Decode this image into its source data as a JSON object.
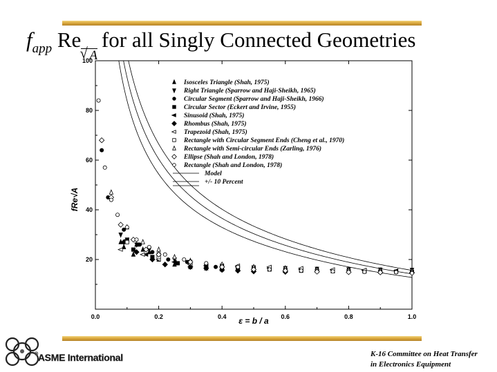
{
  "slide": {
    "title_f": "f",
    "title_app": "app",
    "title_re": " Re",
    "title_A": "A",
    "title_rest": "for all Singly Connected Geometries",
    "footer_line1": "K-16 Committee on Heat Transfer",
    "footer_line2": "in Electronics Equipment",
    "logo_text": "ASME International",
    "logo_mark": "®",
    "colors": {
      "bar": "#d9a63a",
      "ink": "#000000"
    }
  },
  "chart_data": {
    "type": "scatter",
    "xlabel": "ε = b / a",
    "ylabel": "fRe√A",
    "xlim": [
      0,
      1
    ],
    "ylim": [
      0,
      100
    ],
    "xticks": [
      0.0,
      0.2,
      0.4,
      0.6,
      0.8,
      1.0
    ],
    "yticks": [
      20,
      40,
      60,
      80,
      100
    ],
    "xtick_labels": [
      "0.0",
      "0.2",
      "0.4",
      "0.6",
      "0.8",
      "1.0"
    ],
    "ytick_labels": [
      "20",
      "40",
      "60",
      "80",
      "100"
    ],
    "grid": false,
    "legend_position": "top-center",
    "series": [
      {
        "name": "Isosceles Triangle (Shah, 1975)",
        "marker": "triangle-up",
        "fill": true,
        "x": [
          0.08,
          0.09,
          0.12,
          0.13,
          0.15,
          0.17,
          0.2,
          0.25,
          0.3,
          0.35,
          0.4,
          0.5,
          0.6,
          0.7,
          0.8,
          0.9,
          1.0
        ],
        "y": [
          27,
          25,
          22,
          26,
          24,
          23,
          20,
          18,
          17,
          16.5,
          16,
          15.8,
          15.6,
          15.5,
          15.5,
          15.5,
          15.5
        ]
      },
      {
        "name": "Right Triangle (Sparrow and Haji-Sheikh, 1965)",
        "marker": "triangle-down",
        "fill": true,
        "x": [
          0.08,
          0.1,
          0.13,
          0.17,
          0.2,
          0.25,
          0.3,
          0.4,
          0.5,
          0.6,
          0.7,
          0.8,
          0.9,
          1.0
        ],
        "y": [
          30,
          28,
          26,
          24,
          22,
          20,
          19,
          17.5,
          16.8,
          16.5,
          16.2,
          16,
          15.9,
          15.8
        ]
      },
      {
        "name": "Circular Segment (Sparrow and Haji-Sheikh, 1966)",
        "marker": "circle",
        "fill": true,
        "x": [
          0.02,
          0.04,
          0.09,
          0.14,
          0.18,
          0.23,
          0.29,
          0.38,
          0.5,
          0.6,
          0.7,
          0.8,
          0.9,
          1.0
        ],
        "y": [
          64,
          45,
          32,
          26,
          23,
          20,
          19,
          17,
          16,
          15.5,
          15.2,
          15,
          14.9,
          14.8
        ]
      },
      {
        "name": "Circular Sector (Eckert and Irvine, 1955)",
        "marker": "square",
        "fill": true,
        "x": [
          0.12,
          0.18,
          0.26,
          0.35,
          0.45,
          0.55,
          0.65,
          0.75,
          0.85,
          0.95,
          1.0
        ],
        "y": [
          24,
          21,
          18.5,
          17.5,
          16.5,
          16,
          15.5,
          15.3,
          15.2,
          15.1,
          15
        ]
      },
      {
        "name": "Sinusoid (Shah, 1975)",
        "marker": "triangle-left",
        "fill": true,
        "x": [
          0.1,
          0.16,
          0.25,
          0.35,
          0.45,
          0.55,
          0.65,
          0.75,
          0.85,
          0.95
        ],
        "y": [
          28,
          22,
          19,
          17.5,
          17,
          16.5,
          16,
          15.8,
          15.6,
          15.5
        ]
      },
      {
        "name": "Rhombus (Shah, 1975)",
        "marker": "diamond",
        "fill": true,
        "x": [
          0.09,
          0.13,
          0.18,
          0.22,
          0.3,
          0.35,
          0.4,
          0.45,
          0.5,
          0.6
        ],
        "y": [
          27,
          23,
          20,
          18,
          17,
          16.5,
          15.8,
          15.5,
          15.2,
          15
        ]
      },
      {
        "name": "Trapezoid (Shah, 1975)",
        "marker": "triangle-left",
        "fill": false,
        "x": [
          0.08,
          0.15,
          0.2,
          0.3,
          0.45,
          0.55,
          0.65,
          0.75,
          0.85
        ],
        "y": [
          24,
          22,
          20,
          18,
          17.5,
          17,
          16.5,
          16,
          15.8
        ]
      },
      {
        "name": "Rectangle with Circular Segment Ends (Cheng et al., 1970)",
        "marker": "square",
        "fill": false,
        "x": [
          0.1,
          0.2,
          0.3,
          0.4,
          0.5,
          0.6,
          0.7,
          0.8,
          0.9,
          1.0
        ],
        "y": [
          27,
          21,
          18.5,
          17,
          16.3,
          15.8,
          15.5,
          15.3,
          15.1,
          15
        ]
      },
      {
        "name": "Rectangle with Semi-circular Ends (Zarling, 1976)",
        "marker": "triangle-up",
        "fill": false,
        "x": [
          0.05,
          0.1,
          0.15,
          0.2,
          0.25,
          0.3,
          0.4,
          0.5,
          0.6,
          0.7,
          0.8,
          0.9,
          1.0
        ],
        "y": [
          47,
          33,
          27,
          24,
          21,
          19.5,
          18,
          17,
          16.5,
          16,
          15.8,
          15.6,
          15.5
        ]
      },
      {
        "name": "Ellipse (Shah and London, 1978)",
        "marker": "diamond",
        "fill": false,
        "x": [
          0.02,
          0.05,
          0.08,
          0.12,
          0.16,
          0.2,
          0.3,
          0.4,
          0.5,
          0.6,
          0.7,
          0.8,
          0.9,
          1.0
        ],
        "y": [
          68,
          45,
          34,
          28,
          24,
          22,
          19,
          17,
          16,
          15.5,
          15.1,
          14.9,
          14.8,
          14.7
        ]
      },
      {
        "name": "Rectangle (Shah and London, 1978)",
        "marker": "circle",
        "fill": false,
        "x": [
          0.01,
          0.03,
          0.05,
          0.07,
          0.1,
          0.13,
          0.17,
          0.22,
          0.28,
          0.35,
          0.45,
          0.55,
          0.65,
          0.75,
          0.85,
          0.95,
          1.0
        ],
        "y": [
          84,
          57,
          44,
          38,
          33,
          28,
          25,
          22,
          20,
          18.5,
          17,
          16,
          15.5,
          15.2,
          15,
          14.9,
          14.5
        ]
      }
    ],
    "lines": [
      {
        "name": "Model",
        "style": "solid"
      },
      {
        "name": "+/- 10 Percent",
        "style": "solid"
      }
    ]
  }
}
